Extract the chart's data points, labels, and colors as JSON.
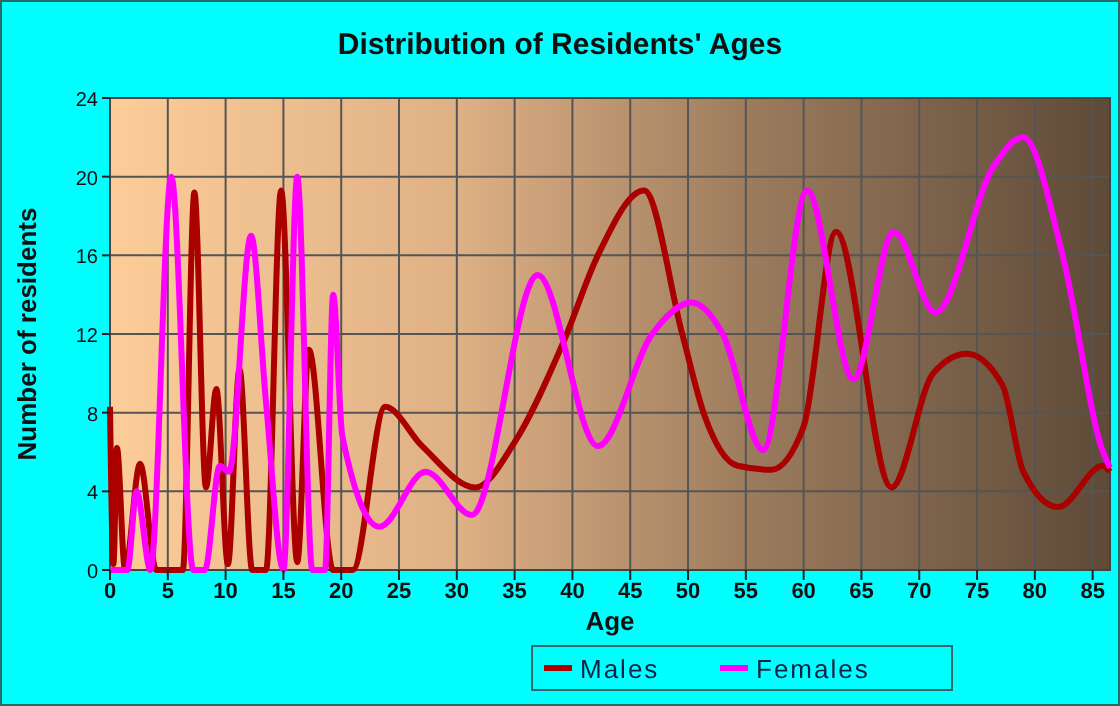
{
  "chart_data": {
    "type": "line",
    "title": "Distribution of Residents' Ages",
    "xlabel": "Age",
    "ylabel": "Number of residents",
    "xlim": [
      0,
      86.5
    ],
    "xticks": [
      0,
      5,
      10,
      15,
      20,
      25,
      30,
      35,
      40,
      45,
      50,
      55,
      60,
      65,
      70,
      75,
      80,
      85
    ],
    "ylim": [
      0,
      24
    ],
    "yticks": [
      0,
      4,
      8,
      12,
      16,
      20,
      24
    ],
    "grid": true,
    "legend": "bottom",
    "marker": "none",
    "line_style": "solid",
    "series": [
      {
        "name": "Males",
        "color": "#aa0000",
        "x": [
          0,
          0.3,
          0.6,
          1.3,
          2.6,
          4,
          6.3,
          7.3,
          8.3,
          9.2,
          10.2,
          11.2,
          12.3,
          13.5,
          14.8,
          16.2,
          17.2,
          19.3,
          21,
          23.8,
          27,
          31.6,
          35,
          39.3,
          42.2,
          46.2,
          49.5,
          51.4,
          54.3,
          57.2,
          60,
          62.8,
          67.6,
          71.2,
          74.1,
          77.2,
          79,
          82,
          85.9,
          86.5
        ],
        "values": [
          8.3,
          0.3,
          6.2,
          0,
          5.4,
          0,
          0,
          19.2,
          4.2,
          9.2,
          0.3,
          10.2,
          0,
          0,
          19.3,
          0.4,
          11.2,
          0,
          0,
          8.3,
          6.3,
          4.2,
          6.5,
          11.7,
          16,
          19.3,
          12,
          7.9,
          5.3,
          5.1,
          7.3,
          17.2,
          4.2,
          10,
          11,
          9.4,
          5,
          3.2,
          5.3,
          5
        ]
      },
      {
        "name": "Females",
        "color": "#ff00ff",
        "x": [
          0,
          1.5,
          2.3,
          3.5,
          5.3,
          7.2,
          8.2,
          9.5,
          10.3,
          12.2,
          13.5,
          15,
          16.2,
          17.5,
          18.6,
          19.3,
          20.1,
          23.3,
          27.3,
          31.3,
          37,
          42.2,
          46.9,
          50.3,
          53,
          56.5,
          60.3,
          64.3,
          67.8,
          71.4,
          76.4,
          79,
          82.4,
          85.9,
          86.5
        ],
        "values": [
          0,
          0,
          4,
          0,
          20,
          0,
          0,
          5.3,
          5,
          17,
          8.5,
          0,
          20,
          0,
          0,
          14,
          6.8,
          2.2,
          5,
          2.8,
          15,
          6.3,
          12,
          13.6,
          12,
          6.1,
          19.3,
          9.7,
          17.2,
          13.1,
          20.5,
          22,
          16,
          6,
          5.2
        ]
      }
    ]
  }
}
